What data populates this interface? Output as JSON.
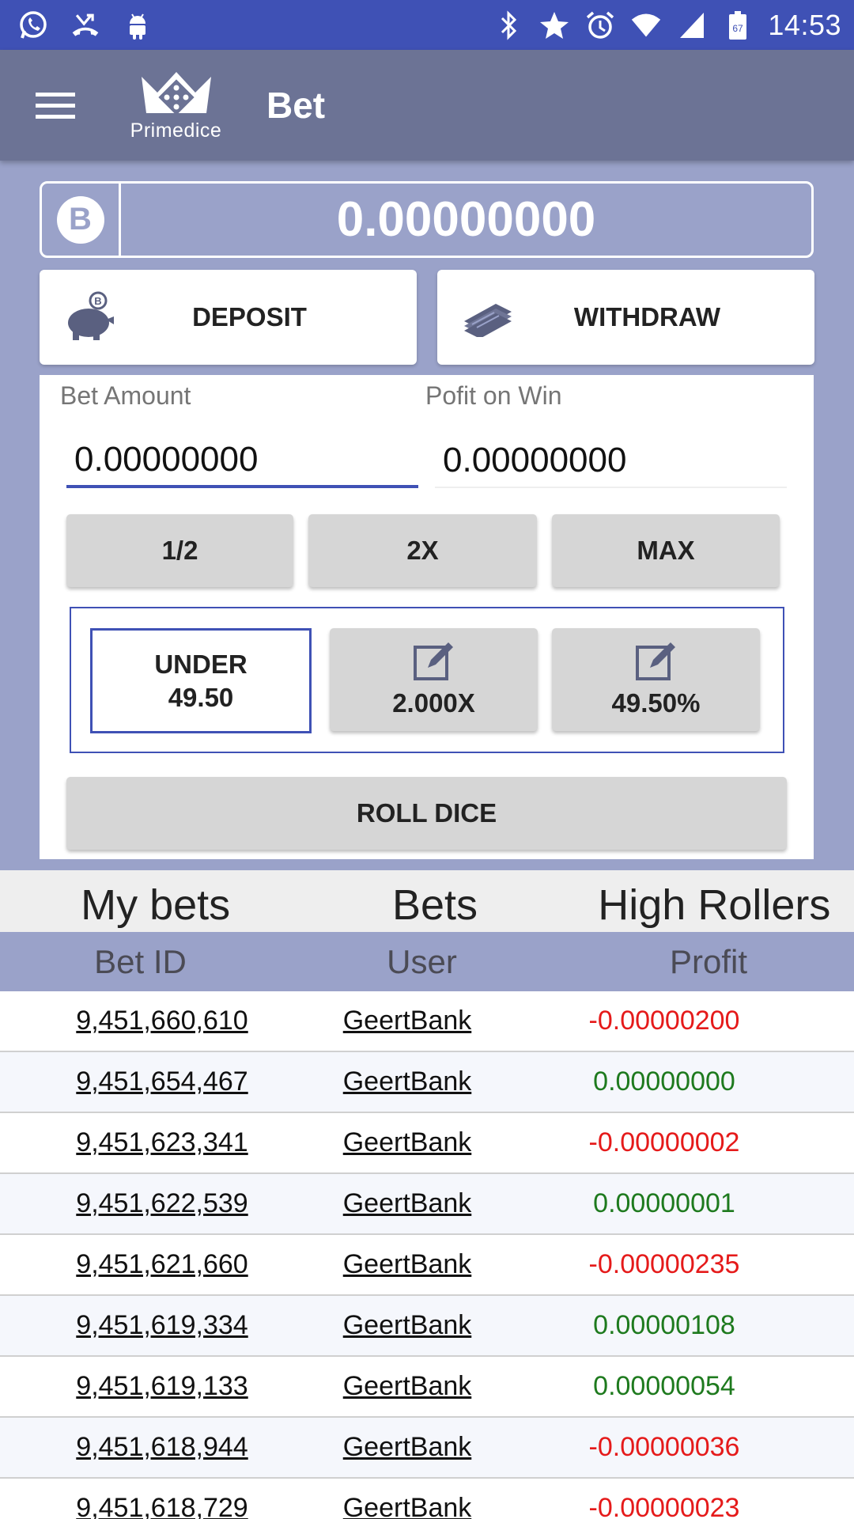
{
  "status_bar": {
    "time": "14:53",
    "left_icons": [
      "whatsapp-icon",
      "missed-call-icon",
      "android-icon"
    ],
    "right_icons": [
      "bluetooth-icon",
      "star-icon",
      "alarm-icon",
      "wifi-icon",
      "signal-icon",
      "battery-icon"
    ],
    "battery_level": "67"
  },
  "toolbar": {
    "title": "Bet",
    "logo_text": "Primedice"
  },
  "balance": {
    "currency_symbol": "B",
    "value": "0.00000000"
  },
  "actions": {
    "deposit_label": "DEPOSIT",
    "withdraw_label": "WITHDRAW"
  },
  "bet_form": {
    "bet_amount_label": "Bet Amount",
    "bet_amount_value": "0.00000000",
    "profit_label": "Pofit on Win",
    "profit_value": "0.00000000",
    "half_label": "1/2",
    "double_label": "2X",
    "max_label": "MAX",
    "under_label": "UNDER",
    "under_value": "49.50",
    "multiplier_label": "2.000X",
    "chance_label": "49.50%",
    "roll_label": "ROLL DICE"
  },
  "tabs": [
    {
      "label": "My bets"
    },
    {
      "label": "Bets"
    },
    {
      "label": "High Rollers"
    }
  ],
  "table": {
    "headers": {
      "bet_id": "Bet ID",
      "user": "User",
      "profit": "Profit"
    },
    "rows": [
      {
        "bet_id": "9,451,660,610",
        "user": "GeertBank",
        "profit": "-0.00000200",
        "negative": true
      },
      {
        "bet_id": "9,451,654,467",
        "user": "GeertBank",
        "profit": "0.00000000",
        "negative": false
      },
      {
        "bet_id": "9,451,623,341",
        "user": "GeertBank",
        "profit": "-0.00000002",
        "negative": true
      },
      {
        "bet_id": "9,451,622,539",
        "user": "GeertBank",
        "profit": "0.00000001",
        "negative": false
      },
      {
        "bet_id": "9,451,621,660",
        "user": "GeertBank",
        "profit": "-0.00000235",
        "negative": true
      },
      {
        "bet_id": "9,451,619,334",
        "user": "GeertBank",
        "profit": "0.00000108",
        "negative": false
      },
      {
        "bet_id": "9,451,619,133",
        "user": "GeertBank",
        "profit": "0.00000054",
        "negative": false
      },
      {
        "bet_id": "9,451,618,944",
        "user": "GeertBank",
        "profit": "-0.00000036",
        "negative": true
      },
      {
        "bet_id": "9,451,618,729",
        "user": "GeertBank",
        "profit": "-0.00000023",
        "negative": true
      }
    ]
  },
  "colors": {
    "status_bar": "#3f51b5",
    "toolbar": "#6c7395",
    "background": "#9aa2c9",
    "accent": "#3f51b5",
    "negative": "#e51a1a",
    "positive": "#1e7a1e"
  }
}
